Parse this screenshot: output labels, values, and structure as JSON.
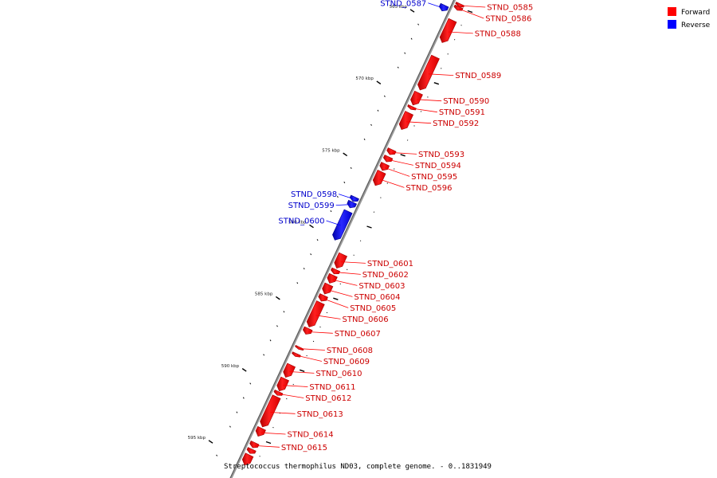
{
  "legend": [
    {
      "label": "Forward",
      "color": "#ff0000"
    },
    {
      "label": "Reverse",
      "color": "#0000ff"
    }
  ],
  "colors": {
    "forward": "#ff0000",
    "reverse": "#0000ff",
    "backbone": "#888888"
  },
  "caption": "Streptococcus thermophilus ND03, complete genome. - 0..1831949",
  "axis": {
    "start_kbp": 564.0,
    "end_kbp": 596.5,
    "major_ticks": [
      {
        "kbp": 565,
        "label": "565 kbp"
      },
      {
        "kbp": 570,
        "label": "570 kbp"
      },
      {
        "kbp": 575,
        "label": "575 kbp"
      },
      {
        "kbp": 580,
        "label": "580 kbp"
      },
      {
        "kbp": 585,
        "label": "585 kbp"
      },
      {
        "kbp": 590,
        "label": "590 kbp"
      },
      {
        "kbp": 595,
        "label": "595 kbp"
      }
    ]
  },
  "genes": [
    {
      "name": "STND_0585",
      "strand": "forward",
      "start_kbp": 564.4,
      "end_kbp": 564.6
    },
    {
      "name": "STND_0586",
      "strand": "forward",
      "start_kbp": 564.6,
      "end_kbp": 564.85
    },
    {
      "name": "STND_0587",
      "strand": "reverse",
      "start_kbp": 564.9,
      "end_kbp": 565.3
    },
    {
      "name": "STND_0588",
      "strand": "forward",
      "start_kbp": 565.55,
      "end_kbp": 567.1
    },
    {
      "name": "STND_0589",
      "strand": "forward",
      "start_kbp": 568.1,
      "end_kbp": 570.4
    },
    {
      "name": "STND_0590",
      "strand": "forward",
      "start_kbp": 570.6,
      "end_kbp": 571.45
    },
    {
      "name": "STND_0591",
      "strand": "forward",
      "start_kbp": 571.55,
      "end_kbp": 571.75
    },
    {
      "name": "STND_0592",
      "strand": "forward",
      "start_kbp": 572.0,
      "end_kbp": 573.15
    },
    {
      "name": "STND_0593",
      "strand": "forward",
      "start_kbp": 574.55,
      "end_kbp": 574.9
    },
    {
      "name": "STND_0594",
      "strand": "forward",
      "start_kbp": 575.05,
      "end_kbp": 575.4
    },
    {
      "name": "STND_0595",
      "strand": "forward",
      "start_kbp": 575.55,
      "end_kbp": 576.0
    },
    {
      "name": "STND_0596",
      "strand": "forward",
      "start_kbp": 576.1,
      "end_kbp": 577.05
    },
    {
      "name": "STND_0598",
      "strand": "reverse",
      "start_kbp": 578.25,
      "end_kbp": 578.55
    },
    {
      "name": "STND_0599",
      "strand": "reverse",
      "start_kbp": 578.6,
      "end_kbp": 579.0
    },
    {
      "name": "STND_0600",
      "strand": "reverse",
      "start_kbp": 579.25,
      "end_kbp": 581.25
    },
    {
      "name": "STND_0601",
      "strand": "forward",
      "start_kbp": 581.85,
      "end_kbp": 582.8
    },
    {
      "name": "STND_0602",
      "strand": "forward",
      "start_kbp": 582.9,
      "end_kbp": 583.2
    },
    {
      "name": "STND_0603",
      "strand": "forward",
      "start_kbp": 583.3,
      "end_kbp": 583.85
    },
    {
      "name": "STND_0604",
      "strand": "forward",
      "start_kbp": 583.95,
      "end_kbp": 584.6
    },
    {
      "name": "STND_0605",
      "strand": "forward",
      "start_kbp": 584.7,
      "end_kbp": 585.1
    },
    {
      "name": "STND_0606",
      "strand": "forward",
      "start_kbp": 585.2,
      "end_kbp": 586.9
    },
    {
      "name": "STND_0607",
      "strand": "forward",
      "start_kbp": 587.0,
      "end_kbp": 587.4
    },
    {
      "name": "STND_0608",
      "strand": "forward",
      "start_kbp": 588.3,
      "end_kbp": 588.45
    },
    {
      "name": "STND_0609",
      "strand": "forward",
      "start_kbp": 588.75,
      "end_kbp": 588.95
    },
    {
      "name": "STND_0610",
      "strand": "forward",
      "start_kbp": 589.55,
      "end_kbp": 590.4
    },
    {
      "name": "STND_0611",
      "strand": "forward",
      "start_kbp": 590.5,
      "end_kbp": 591.35
    },
    {
      "name": "STND_0612",
      "strand": "forward",
      "start_kbp": 591.4,
      "end_kbp": 591.65
    },
    {
      "name": "STND_0613",
      "strand": "forward",
      "start_kbp": 591.75,
      "end_kbp": 593.85
    },
    {
      "name": "STND_0614",
      "strand": "forward",
      "start_kbp": 593.95,
      "end_kbp": 594.5
    },
    {
      "name": "STND_0615",
      "strand": "forward",
      "start_kbp": 594.95,
      "end_kbp": 595.3
    },
    {
      "name": "",
      "strand": "forward",
      "start_kbp": 595.4,
      "end_kbp": 595.7
    },
    {
      "name": "",
      "strand": "forward",
      "start_kbp": 595.8,
      "end_kbp": 596.5
    }
  ]
}
